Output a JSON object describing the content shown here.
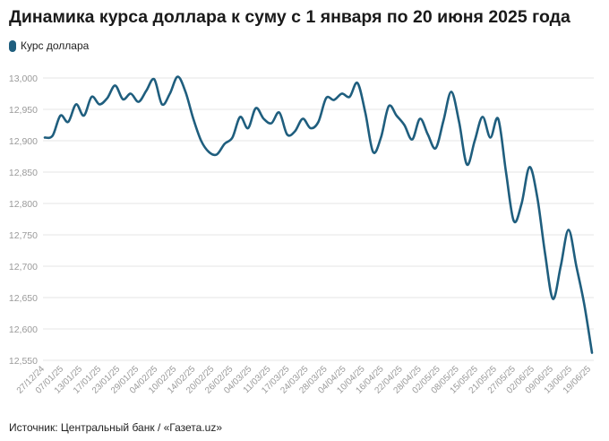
{
  "header": {
    "title": "Динамика курса доллара к суму с 1 января по 20 июня 2025 года"
  },
  "footer": {
    "source": "Источник: Центральный банк / «Газета.uz»"
  },
  "colors": {
    "series": "#1f5e7e",
    "grid": "#e4e4e4",
    "tick": "#9a9a9a"
  },
  "chart_data": {
    "type": "line",
    "title": "Динамика курса доллара к суму с 1 января по 20 июня 2025 года",
    "xlabel": "",
    "ylabel": "",
    "ylim": [
      12550,
      13000
    ],
    "yticks": [
      "12,550",
      "12,600",
      "12,650",
      "12,700",
      "12,750",
      "12,800",
      "12,850",
      "12,900",
      "12,950",
      "13,000"
    ],
    "ytick_values": [
      12550,
      12600,
      12650,
      12700,
      12750,
      12800,
      12850,
      12900,
      12950,
      13000
    ],
    "xticks": [
      "27/12/24",
      "07/01/25",
      "13/01/25",
      "17/01/25",
      "23/01/25",
      "29/01/25",
      "04/02/25",
      "10/02/25",
      "14/02/25",
      "20/02/25",
      "26/02/25",
      "04/03/25",
      "11/03/25",
      "17/03/25",
      "24/03/25",
      "28/03/25",
      "04/04/25",
      "10/04/25",
      "16/04/25",
      "22/04/25",
      "28/04/25",
      "02/05/25",
      "08/05/25",
      "15/05/25",
      "21/05/25",
      "27/05/25",
      "02/06/25",
      "09/06/25",
      "13/06/25",
      "19/06/25"
    ],
    "grid": true,
    "legend": "top-left",
    "series": [
      {
        "name": "Курс доллара",
        "values": [
          12905,
          12908,
          12940,
          12930,
          12958,
          12940,
          12970,
          12958,
          12968,
          12988,
          12966,
          12975,
          12962,
          12980,
          12998,
          12958,
          12975,
          13002,
          12978,
          12935,
          12900,
          12882,
          12878,
          12895,
          12905,
          12938,
          12920,
          12952,
          12935,
          12928,
          12945,
          12910,
          12915,
          12935,
          12920,
          12930,
          12968,
          12965,
          12975,
          12970,
          12992,
          12945,
          12882,
          12905,
          12955,
          12940,
          12925,
          12902,
          12935,
          12910,
          12888,
          12932,
          12978,
          12930,
          12862,
          12900,
          12938,
          12905,
          12935,
          12850,
          12772,
          12800,
          12858,
          12810,
          12720,
          12648,
          12700,
          12758,
          12700,
          12640,
          12562
        ]
      }
    ]
  }
}
